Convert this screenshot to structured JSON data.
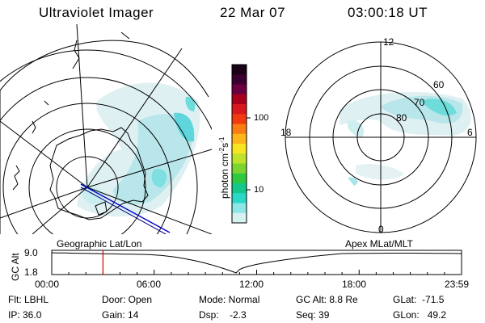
{
  "header": {
    "instrument": "Ultraviolet Imager",
    "date": "22 Mar 07",
    "time": "03:00:18 UT"
  },
  "colorbar": {
    "unit_label": "photon cm",
    "unit_exp1": "-2",
    "unit_s": "s",
    "unit_exp2": "-1",
    "ticks": [
      "100",
      "10"
    ],
    "colors": [
      "#1a0018",
      "#3a0030",
      "#6a0040",
      "#a8001c",
      "#d8181c",
      "#f23a10",
      "#f97c14",
      "#fcb61c",
      "#f6e520",
      "#bfe22a",
      "#7bd42f",
      "#2fc941",
      "#16c78c",
      "#2ad8c8",
      "#8de6e8",
      "#d6f2f2"
    ]
  },
  "left_panel": {
    "caption": "Geographic Lat/Lon"
  },
  "right_panel": {
    "caption": "Apex MLat/MLT",
    "mlt_labels": {
      "top": "12",
      "left": "18",
      "right": "6",
      "bottom": "0"
    },
    "lat_labels": [
      "80",
      "70",
      "60"
    ]
  },
  "altitude_plot": {
    "ylabel": "GC Alt",
    "yticks": [
      "9.0",
      "1.8"
    ],
    "xticks": [
      "00:00",
      "06:00",
      "12:00",
      "18:00",
      "23:59"
    ],
    "current_time_hours": 3.0
  },
  "info": {
    "flt": "Flt: LBHL",
    "ip": "IP: 36.0",
    "door": "Door: Open",
    "gain": "Gain: 14",
    "mode": "Mode: Normal",
    "dsp": "Dsp:    -2.3",
    "gcalt": "GC Alt: 8.8 Re",
    "seq": "Seq: 39",
    "glat": "GLat:  -71.5",
    "glon": "GLon:   49.2"
  }
}
